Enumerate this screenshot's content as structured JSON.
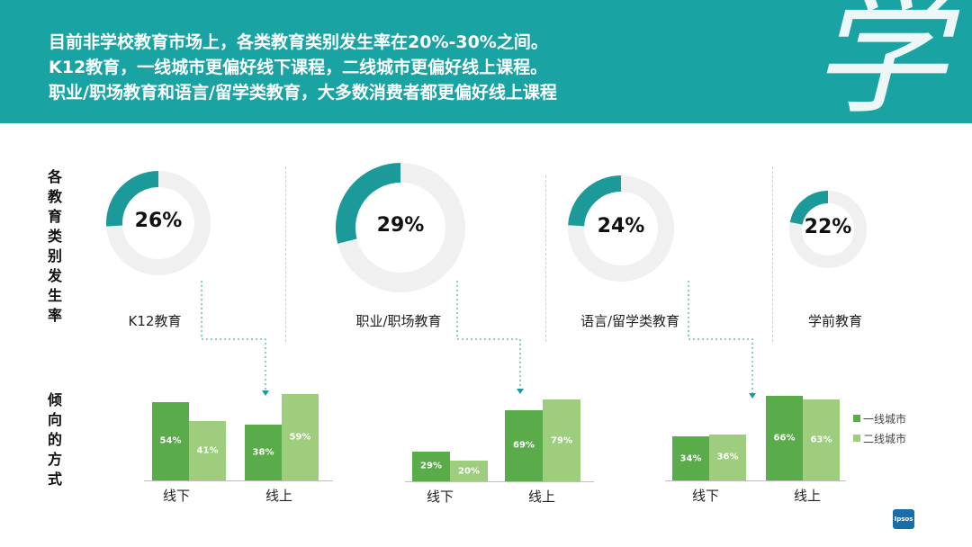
{
  "header": {
    "lines": [
      "目前非学校教育市场上，各类教育类别发生率在20%-30%之间。",
      "K12教育，一线城市更偏好线下课程，二线城市更偏好线上课程。",
      "职业/职场教育和语言/留学类教育，大多数消费者都更偏好线上课程"
    ],
    "watermark_char": "学"
  },
  "side_labels": {
    "top": [
      "各",
      "教",
      "育",
      "类",
      "别",
      "发",
      "生",
      "率"
    ],
    "bottom": [
      "倾",
      "向",
      "的",
      "方",
      "式"
    ]
  },
  "logo": {
    "text": "Ipsos"
  },
  "colors": {
    "header_bg": "#1aa3a3",
    "donut": "#1c9a9a",
    "donut_track": "#f0f0f0",
    "tier1": "#5aab4a",
    "tier2": "#9fcd7e",
    "connector": "#1c9a9a"
  },
  "chart_data": [
    {
      "type": "pie",
      "title": "",
      "categories": [
        "K12教育",
        "职业/职场教育",
        "语言/留学类教育",
        "学前教育"
      ],
      "values": [
        26,
        29,
        24,
        22
      ],
      "labels": [
        "26%",
        "29%",
        "24%",
        "22%"
      ]
    },
    {
      "type": "bar",
      "title": "",
      "categories": [
        "线下",
        "线上"
      ],
      "series": [
        {
          "name": "一线城市",
          "values": [
            54,
            38
          ],
          "labels": [
            "54%",
            "38%"
          ]
        },
        {
          "name": "二线城市",
          "values": [
            41,
            59
          ],
          "labels": [
            "41%",
            "59%"
          ]
        }
      ]
    },
    {
      "type": "bar",
      "title": "",
      "categories": [
        "线下",
        "线上"
      ],
      "series": [
        {
          "name": "一线城市",
          "values": [
            29,
            69
          ],
          "labels": [
            "29%",
            "69%"
          ]
        },
        {
          "name": "二线城市",
          "values": [
            20,
            79
          ],
          "labels": [
            "20%",
            "79%"
          ]
        }
      ]
    },
    {
      "type": "bar",
      "title": "",
      "categories": [
        "线下",
        "线上"
      ],
      "series": [
        {
          "name": "一线城市",
          "values": [
            34,
            66
          ],
          "labels": [
            "34%",
            "66%"
          ]
        },
        {
          "name": "二线城市",
          "values": [
            36,
            63
          ],
          "labels": [
            "36%",
            "63%"
          ]
        }
      ],
      "legend": "right"
    }
  ]
}
